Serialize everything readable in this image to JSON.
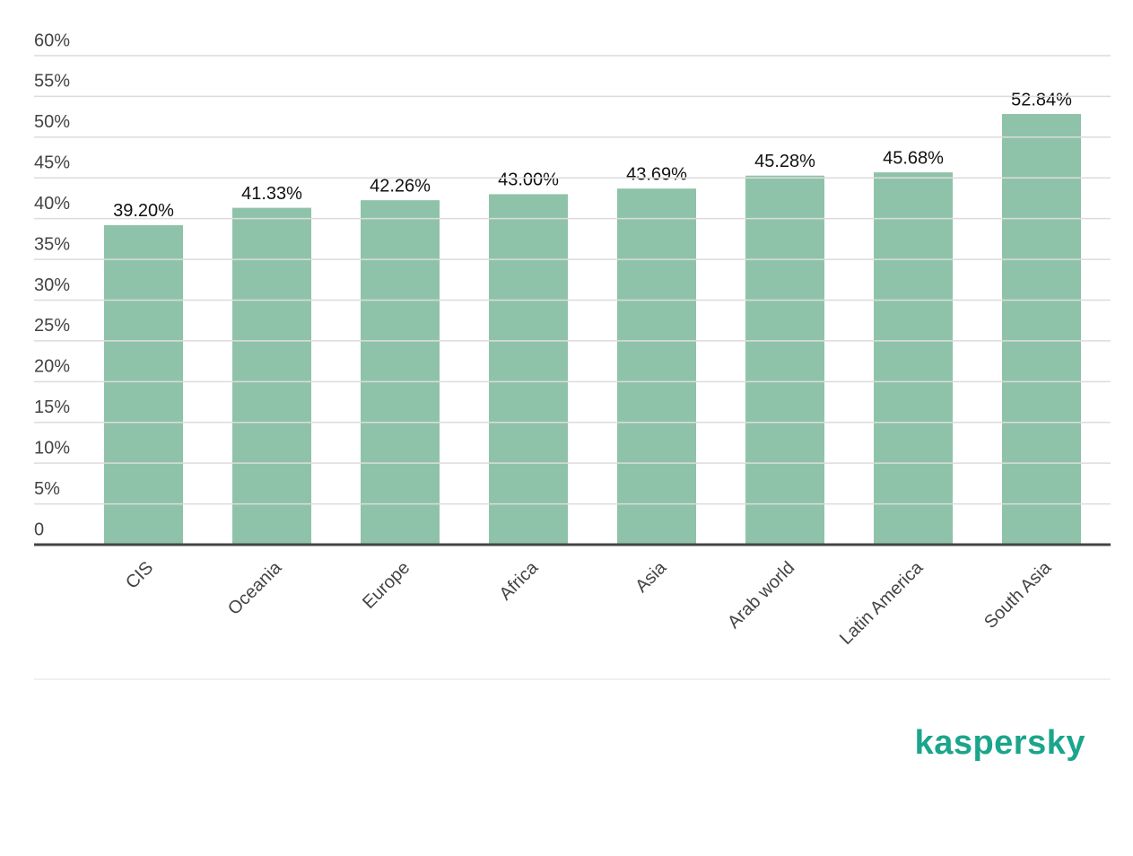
{
  "chart_data": {
    "type": "bar",
    "categories": [
      "CIS",
      "Oceania",
      "Europe",
      "Africa",
      "Asia",
      "Arab world",
      "Latin America",
      "South Asia"
    ],
    "values": [
      39.2,
      41.33,
      42.26,
      43.0,
      43.69,
      45.28,
      45.68,
      52.84
    ],
    "value_labels": [
      "39.20%",
      "41.33%",
      "42.26%",
      "43.00%",
      "43.69%",
      "45.28%",
      "45.68%",
      "52.84%"
    ],
    "color": "#8fc3a9",
    "ylim": [
      0,
      60
    ],
    "yticks": [
      0,
      {
        "value": 5,
        "label": "5%"
      },
      {
        "value": 10,
        "label": "10%"
      },
      {
        "value": 15,
        "label": "15%"
      },
      {
        "value": 20,
        "label": "20%"
      },
      {
        "value": 25,
        "label": "25%"
      },
      {
        "value": 30,
        "label": "30%"
      },
      {
        "value": 35,
        "label": "35%"
      },
      {
        "value": 40,
        "label": "40%"
      },
      {
        "value": 45,
        "label": "45%"
      },
      {
        "value": 50,
        "label": "50%"
      },
      {
        "value": 55,
        "label": "55%"
      },
      {
        "value": 60,
        "label": "60%"
      }
    ],
    "grid": true
  },
  "logo": "kaspersky"
}
